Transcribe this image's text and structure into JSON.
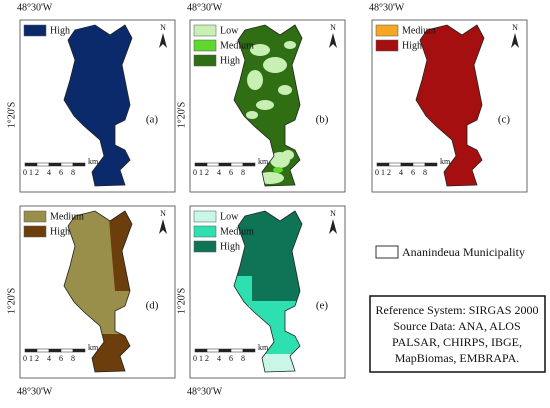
{
  "panels": [
    {
      "label": "(a)",
      "lon_label": "48°30'W",
      "lat_label": "1°20'S",
      "legend": [
        {
          "name": "High",
          "color": "#0b2a6b"
        }
      ]
    },
    {
      "label": "(b)",
      "lon_label": "48°30'W",
      "lat_label": "1°20'S",
      "legend": [
        {
          "name": "Low",
          "color": "#c8f0b4"
        },
        {
          "name": "Medium",
          "color": "#5ed82c"
        },
        {
          "name": "High",
          "color": "#2f6e12"
        }
      ]
    },
    {
      "label": "(c)",
      "lon_label": "48°30'W",
      "legend": [
        {
          "name": "Medium",
          "color": "#f5a623"
        },
        {
          "name": "High",
          "color": "#a50f0f"
        }
      ]
    },
    {
      "label": "(d)",
      "lon_label": "48°30'W",
      "lat_label": "1°20'S",
      "legend": [
        {
          "name": "Medium",
          "color": "#9a8f4a"
        },
        {
          "name": "High",
          "color": "#6b3e0c"
        }
      ]
    },
    {
      "label": "(e)",
      "lon_label": "48°30'W",
      "lat_label": "1°20'S",
      "legend": [
        {
          "name": "Low",
          "color": "#c8f7e8"
        },
        {
          "name": "Medium",
          "color": "#2ee0b0"
        },
        {
          "name": "High",
          "color": "#0f7356"
        }
      ]
    }
  ],
  "compass_label": "N",
  "scale_bar": {
    "labels": [
      "0",
      "1",
      "2",
      "4",
      "6",
      "8"
    ],
    "unit": "km"
  },
  "municipality_legend": "Ananindeua Municipality",
  "reference_box": [
    "Reference System: SIRGAS 2000",
    "Source Data: ANA, ALOS",
    "PALSAR, CHIRPS, IBGE,",
    "MapBiomas, EMBRAPA."
  ]
}
